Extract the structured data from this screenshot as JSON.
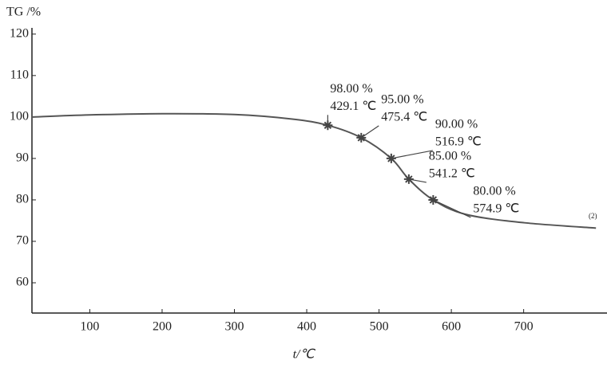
{
  "chart_data": {
    "type": "line",
    "y_label": "TG /%",
    "x_label": "t/℃",
    "xlim": [
      20,
      823
    ],
    "ylim": [
      52.7,
      121.5
    ],
    "xticks": [
      100,
      200,
      300,
      400,
      500,
      600,
      700
    ],
    "yticks": [
      60,
      70,
      80,
      90,
      100,
      110,
      120
    ],
    "grid": false,
    "series": [
      {
        "name": "TG",
        "color": "#555555",
        "x": [
          20,
          100,
          200,
          300,
          380,
          429.1,
          475.4,
          516.9,
          541.2,
          574.9,
          620,
          700,
          800
        ],
        "values": [
          100,
          100.5,
          100.8,
          100.6,
          99.5,
          98,
          95,
          90,
          85,
          80,
          76.5,
          74.5,
          73.2
        ]
      }
    ],
    "markers": {
      "x": [
        429.1,
        475.4,
        516.9,
        541.2,
        574.9
      ],
      "y": [
        98,
        95,
        90,
        85,
        80
      ],
      "x_labels": [
        "429.1 ℃",
        "475.4 ℃",
        "516.9 ℃",
        "541.2 ℃",
        "574.9 ℃"
      ],
      "y_labels": [
        "98.00 %",
        "95.00 %",
        "90.00 %",
        "85.00 %",
        "80.00 %"
      ]
    },
    "annotation": "(2)"
  }
}
